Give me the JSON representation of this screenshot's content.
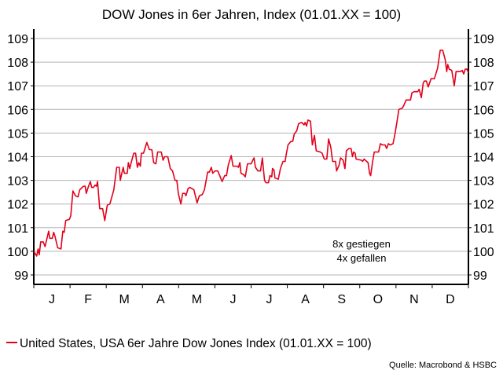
{
  "chart_data": {
    "type": "line",
    "title": "DOW Jones in 6er Jahren, Index (01.01.XX = 100)",
    "xlabel": "",
    "ylabel": "",
    "x_unit": "month (0 = start of January, 12 = end of December)",
    "xlim": [
      0,
      12
    ],
    "ylim": [
      98.6,
      109.3
    ],
    "yticks": [
      99,
      100,
      101,
      102,
      103,
      104,
      105,
      106,
      107,
      108,
      109
    ],
    "month_labels": [
      "J",
      "F",
      "M",
      "A",
      "M",
      "J",
      "J",
      "A",
      "S",
      "O",
      "N",
      "D"
    ],
    "grid": true,
    "axes": "left and right",
    "legend_placement": "bottom-left",
    "annotations": [
      "8x gestiegen",
      "4x gefallen"
    ],
    "series": [
      {
        "name": "United States, USA 6er Jahre Dow Jones Index (01.01.XX = 100)",
        "color": "#e2001a",
        "points": [
          [
            0,
            100
          ],
          [
            0.08,
            99.8
          ],
          [
            0.12,
            100.1
          ],
          [
            0.15,
            99.85
          ],
          [
            0.19,
            100.4
          ],
          [
            0.26,
            100.4
          ],
          [
            0.31,
            100.2
          ],
          [
            0.35,
            100.45
          ],
          [
            0.41,
            100.85
          ],
          [
            0.44,
            100.55
          ],
          [
            0.51,
            100.55
          ],
          [
            0.55,
            100.8
          ],
          [
            0.59,
            100.6
          ],
          [
            0.66,
            100.15
          ],
          [
            0.75,
            100.1
          ],
          [
            0.8,
            100.85
          ],
          [
            0.84,
            100.8
          ],
          [
            0.88,
            101.3
          ],
          [
            0.98,
            101.35
          ],
          [
            1.02,
            101.5
          ],
          [
            1.08,
            102.55
          ],
          [
            1.15,
            102.35
          ],
          [
            1.22,
            102.3
          ],
          [
            1.27,
            102.6
          ],
          [
            1.37,
            102.75
          ],
          [
            1.42,
            102.75
          ],
          [
            1.45,
            102.45
          ],
          [
            1.5,
            102.7
          ],
          [
            1.56,
            102.95
          ],
          [
            1.6,
            102.7
          ],
          [
            1.65,
            102.7
          ],
          [
            1.69,
            102.8
          ],
          [
            1.73,
            102.75
          ],
          [
            1.76,
            102.95
          ],
          [
            1.82,
            101.8
          ],
          [
            1.9,
            101.8
          ],
          [
            1.96,
            101.3
          ],
          [
            2.03,
            101.95
          ],
          [
            2.1,
            102.0
          ],
          [
            2.21,
            102.6
          ],
          [
            2.29,
            103.55
          ],
          [
            2.36,
            103.55
          ],
          [
            2.39,
            103.0
          ],
          [
            2.43,
            103.3
          ],
          [
            2.47,
            103.55
          ],
          [
            2.5,
            103.3
          ],
          [
            2.58,
            103.3
          ],
          [
            2.61,
            103.75
          ],
          [
            2.65,
            103.5
          ],
          [
            2.68,
            103.7
          ],
          [
            2.76,
            104.15
          ],
          [
            2.81,
            104.15
          ],
          [
            2.86,
            103.55
          ],
          [
            2.9,
            103.75
          ],
          [
            2.94,
            103.6
          ],
          [
            2.97,
            104.15
          ],
          [
            3.03,
            104.15
          ],
          [
            3.12,
            104.6
          ],
          [
            3.19,
            104.3
          ],
          [
            3.26,
            104.3
          ],
          [
            3.31,
            103.75
          ],
          [
            3.37,
            103.7
          ],
          [
            3.42,
            104.2
          ],
          [
            3.52,
            104.2
          ],
          [
            3.57,
            103.85
          ],
          [
            3.61,
            104.0
          ],
          [
            3.7,
            104.0
          ],
          [
            3.77,
            103.5
          ],
          [
            3.83,
            103.4
          ],
          [
            3.9,
            103.0
          ],
          [
            3.95,
            103.0
          ],
          [
            3.99,
            102.45
          ],
          [
            4.06,
            102.0
          ],
          [
            4.11,
            102.45
          ],
          [
            4.17,
            102.45
          ],
          [
            4.2,
            102.35
          ],
          [
            4.26,
            102.65
          ],
          [
            4.31,
            102.7
          ],
          [
            4.42,
            102.6
          ],
          [
            4.51,
            102.05
          ],
          [
            4.57,
            102.35
          ],
          [
            4.65,
            102.4
          ],
          [
            4.71,
            102.6
          ],
          [
            4.8,
            103.35
          ],
          [
            4.85,
            103.35
          ],
          [
            4.9,
            103.55
          ],
          [
            4.94,
            103.3
          ],
          [
            5.0,
            103.4
          ],
          [
            5.08,
            103.4
          ],
          [
            5.2,
            102.95
          ],
          [
            5.27,
            103.2
          ],
          [
            5.32,
            103.2
          ],
          [
            5.37,
            103.65
          ],
          [
            5.45,
            104.05
          ],
          [
            5.5,
            103.6
          ],
          [
            5.61,
            103.6
          ],
          [
            5.65,
            103.55
          ],
          [
            5.69,
            103.75
          ],
          [
            5.72,
            103.3
          ],
          [
            5.79,
            103.25
          ],
          [
            5.84,
            103.15
          ],
          [
            5.9,
            103.7
          ],
          [
            6.0,
            103.7
          ],
          [
            6.08,
            103.95
          ],
          [
            6.12,
            103.55
          ],
          [
            6.19,
            103.4
          ],
          [
            6.26,
            103.4
          ],
          [
            6.31,
            103.95
          ],
          [
            6.37,
            103.0
          ],
          [
            6.41,
            102.9
          ],
          [
            6.48,
            102.9
          ],
          [
            6.52,
            103.2
          ],
          [
            6.57,
            103.15
          ],
          [
            6.59,
            103.5
          ],
          [
            6.63,
            103.45
          ],
          [
            6.66,
            103.1
          ],
          [
            6.75,
            103.05
          ],
          [
            6.81,
            103.5
          ],
          [
            6.88,
            103.8
          ],
          [
            6.94,
            103.8
          ],
          [
            6.97,
            104.1
          ],
          [
            7.02,
            104.5
          ],
          [
            7.1,
            104.65
          ],
          [
            7.15,
            104.65
          ],
          [
            7.19,
            104.95
          ],
          [
            7.26,
            105.1
          ],
          [
            7.31,
            105.4
          ],
          [
            7.4,
            105.45
          ],
          [
            7.46,
            105.35
          ],
          [
            7.49,
            105.45
          ],
          [
            7.53,
            105.3
          ],
          [
            7.57,
            105.55
          ],
          [
            7.64,
            105.5
          ],
          [
            7.69,
            104.5
          ],
          [
            7.75,
            104.9
          ],
          [
            7.8,
            104.25
          ],
          [
            7.91,
            104.2
          ],
          [
            7.96,
            104.15
          ],
          [
            8.02,
            103.9
          ],
          [
            8.09,
            103.9
          ],
          [
            8.14,
            104.75
          ],
          [
            8.2,
            104.4
          ],
          [
            8.25,
            103.8
          ],
          [
            8.33,
            103.8
          ],
          [
            8.36,
            103.4
          ],
          [
            8.43,
            103.65
          ],
          [
            8.47,
            103.95
          ],
          [
            8.54,
            103.85
          ],
          [
            8.59,
            103.5
          ],
          [
            8.63,
            104.25
          ],
          [
            8.7,
            104.35
          ],
          [
            8.76,
            104.35
          ],
          [
            8.8,
            104.0
          ],
          [
            8.83,
            104.2
          ],
          [
            8.87,
            104.15
          ],
          [
            8.9,
            103.9
          ],
          [
            9.05,
            103.85
          ],
          [
            9.08,
            103.8
          ],
          [
            9.12,
            103.9
          ],
          [
            9.19,
            103.8
          ],
          [
            9.23,
            103.75
          ],
          [
            9.27,
            103.3
          ],
          [
            9.3,
            103.2
          ],
          [
            9.35,
            103.75
          ],
          [
            9.4,
            104.2
          ],
          [
            9.52,
            104.2
          ],
          [
            9.57,
            104.55
          ],
          [
            9.63,
            104.5
          ],
          [
            9.7,
            104.5
          ],
          [
            9.74,
            104.35
          ],
          [
            9.79,
            104.55
          ],
          [
            9.84,
            104.5
          ],
          [
            9.92,
            104.55
          ],
          [
            9.97,
            104.95
          ],
          [
            10.03,
            105.5
          ],
          [
            10.08,
            106.0
          ],
          [
            10.17,
            106.05
          ],
          [
            10.21,
            106.15
          ],
          [
            10.28,
            106.4
          ],
          [
            10.35,
            106.4
          ],
          [
            10.4,
            106.4
          ],
          [
            10.44,
            106.7
          ],
          [
            10.5,
            106.75
          ],
          [
            10.6,
            106.75
          ],
          [
            10.64,
            106.85
          ],
          [
            10.7,
            106.5
          ],
          [
            10.75,
            107.1
          ],
          [
            10.78,
            107.2
          ],
          [
            10.84,
            107.2
          ],
          [
            10.89,
            106.95
          ],
          [
            10.97,
            107.3
          ],
          [
            11.06,
            107.3
          ],
          [
            11.15,
            107.75
          ],
          [
            11.22,
            108.5
          ],
          [
            11.29,
            108.5
          ],
          [
            11.36,
            108.1
          ],
          [
            11.4,
            107.6
          ],
          [
            11.43,
            107.9
          ],
          [
            11.47,
            107.7
          ],
          [
            11.54,
            107.65
          ],
          [
            11.61,
            107.0
          ],
          [
            11.66,
            107.6
          ],
          [
            11.72,
            107.6
          ],
          [
            11.78,
            107.6
          ],
          [
            11.83,
            107.65
          ],
          [
            11.87,
            107.5
          ],
          [
            11.91,
            107.7
          ],
          [
            11.96,
            107.7
          ],
          [
            12.0,
            107.55
          ]
        ]
      }
    ]
  },
  "legend": {
    "label": "United States, USA 6er Jahre Dow Jones Index (01.01.XX = 100)"
  },
  "source": "Quelle: Macrobond & HSBC"
}
